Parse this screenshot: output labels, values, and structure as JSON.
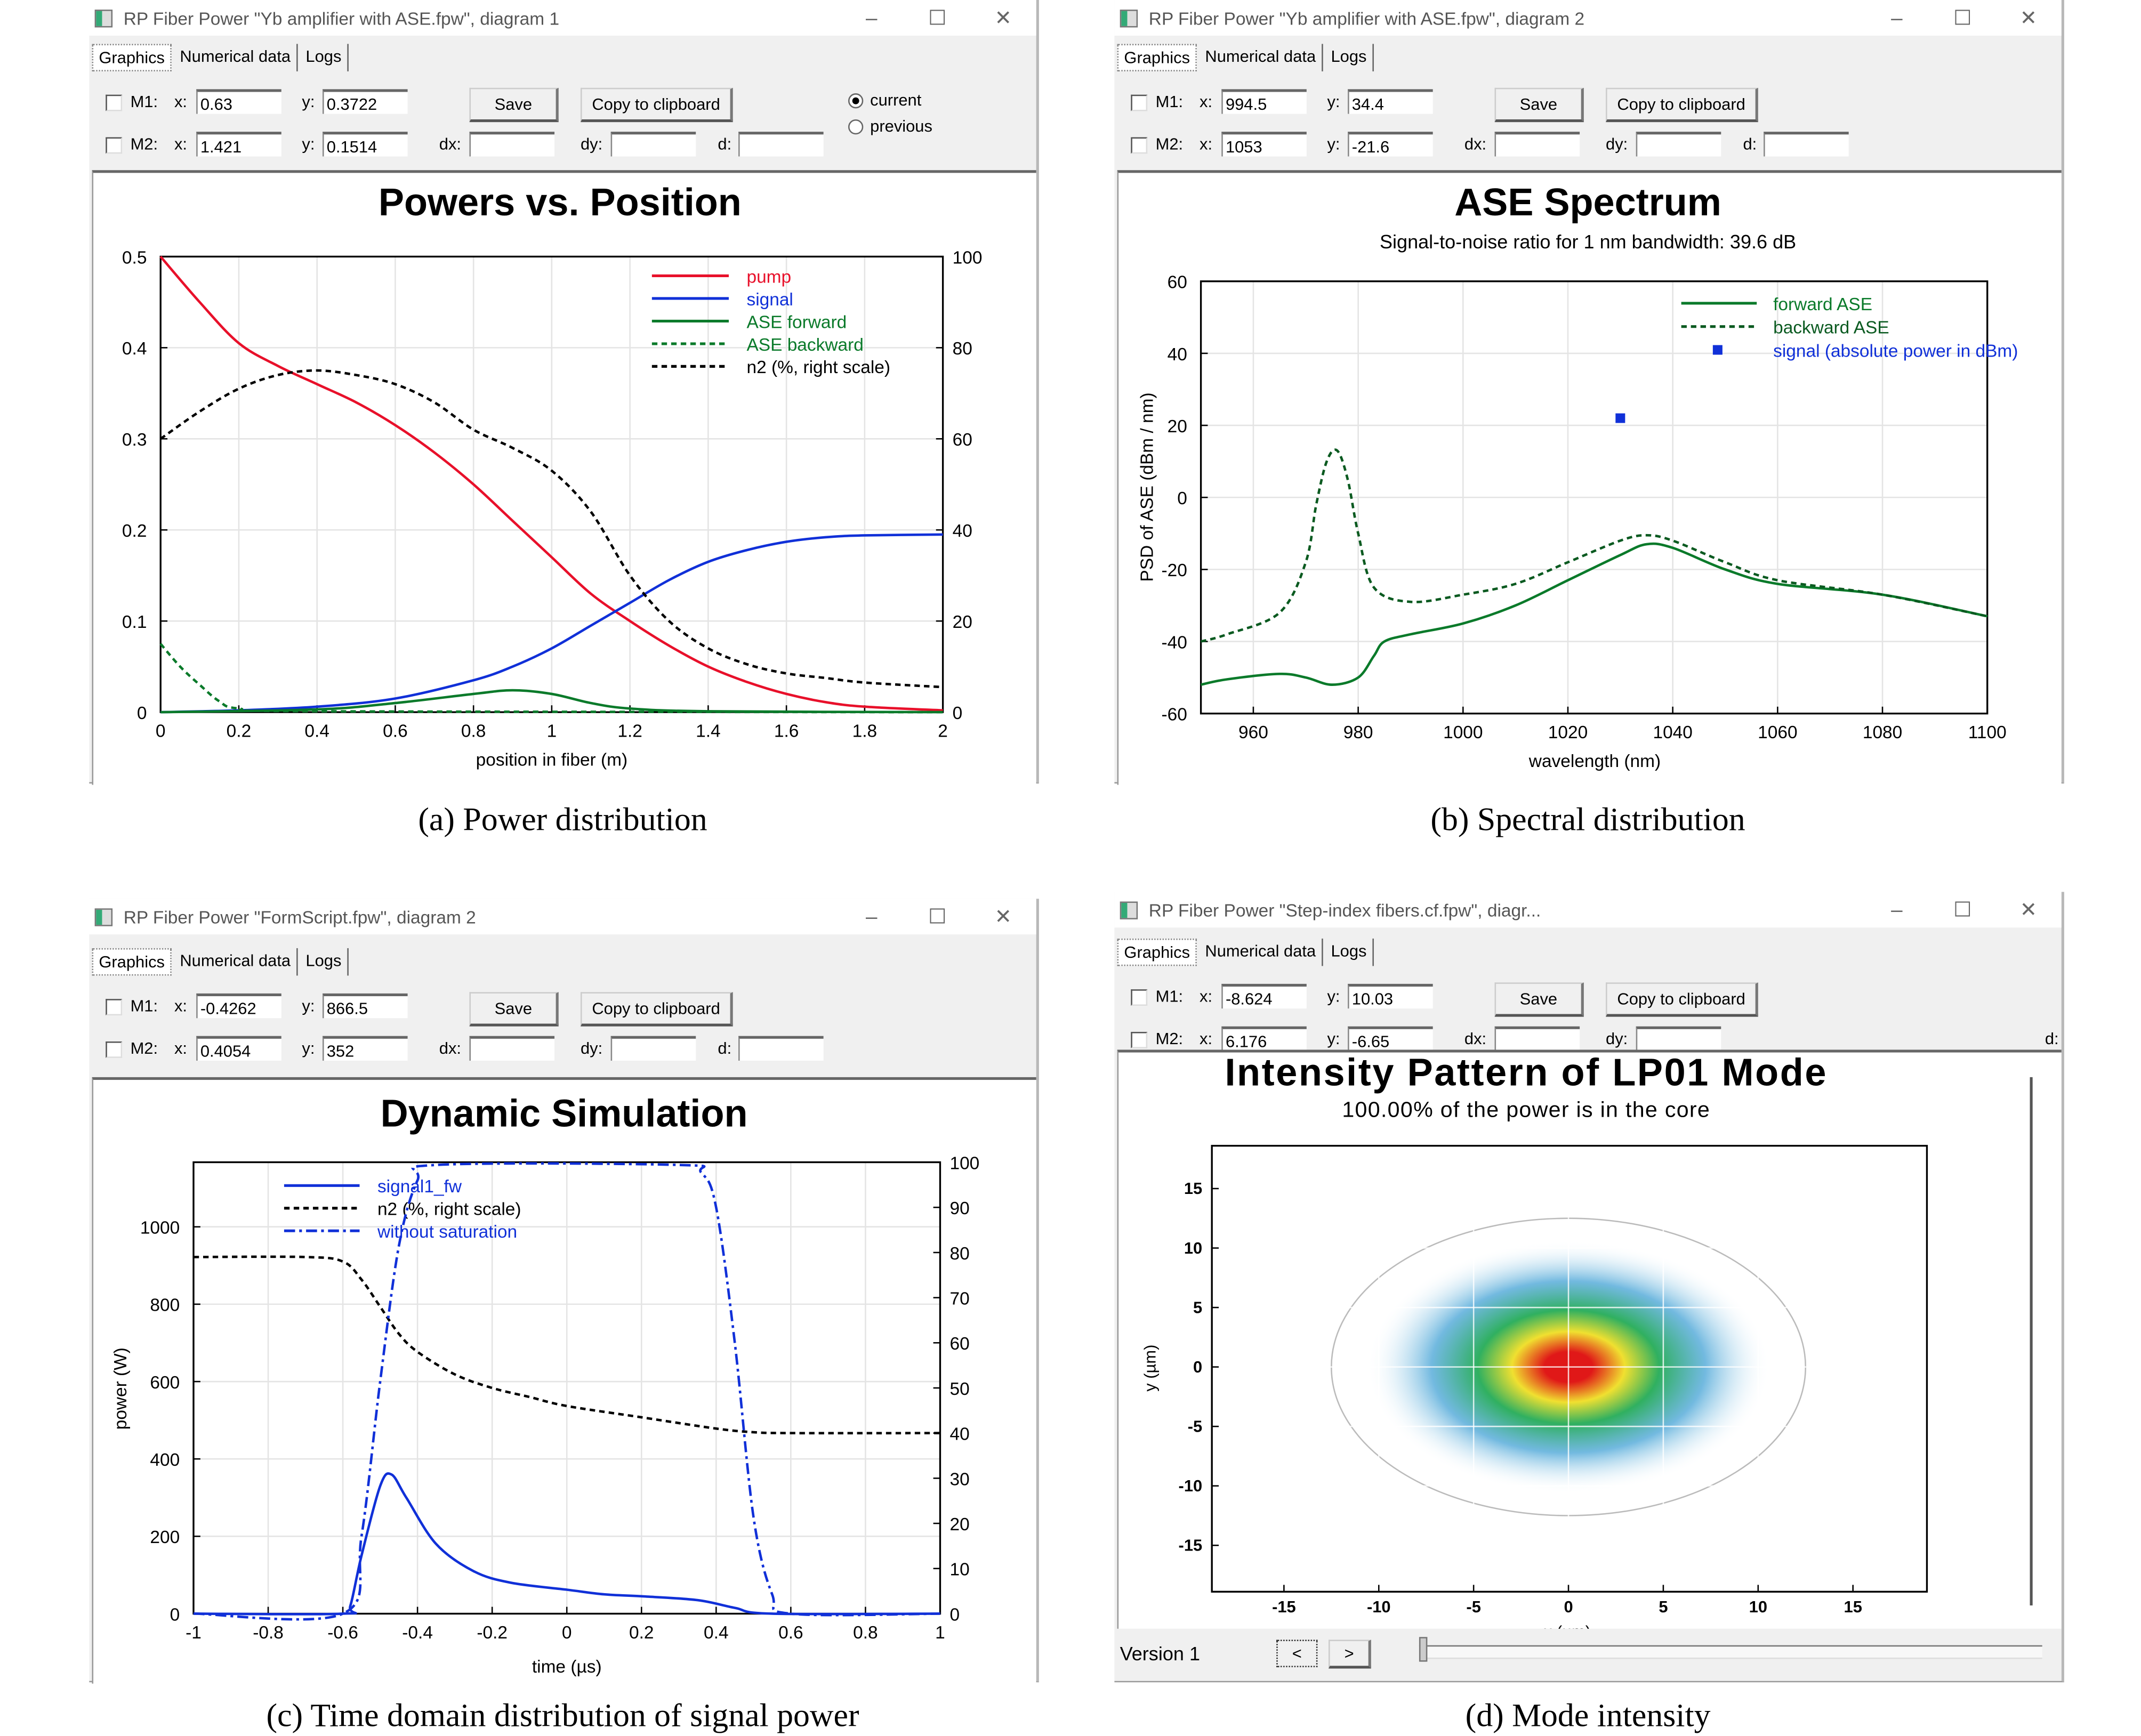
{
  "captions": [
    "(a) Power distribution",
    "(b) Spectral distribution",
    "(c) Time domain distribution of signal power",
    "(d) Mode intensity"
  ],
  "windows": [
    {
      "title": "RP Fiber Power \"Yb amplifier with ASE.fpw\", diagram 1",
      "tabs": [
        "Graphics",
        "Numerical data",
        "Logs"
      ],
      "m1_label": "M1:",
      "m2_label": "M2:",
      "x_label": "x:",
      "y_label": "y:",
      "dx_label": "dx:",
      "dy_label": "dy:",
      "d_label": "d:",
      "m1": {
        "x": "0.63",
        "y": "0.3722"
      },
      "m2": {
        "x": "1.421",
        "y": "0.1514"
      },
      "dx": "",
      "dy": "",
      "d": "",
      "save": "Save",
      "copy": "Copy to clipboard",
      "radio_current": "current",
      "radio_previous": "previous"
    },
    {
      "title": "RP Fiber Power \"Yb amplifier with ASE.fpw\", diagram 2",
      "tabs": [
        "Graphics",
        "Numerical data",
        "Logs"
      ],
      "m1_label": "M1:",
      "m2_label": "M2:",
      "x_label": "x:",
      "y_label": "y:",
      "dx_label": "dx:",
      "dy_label": "dy:",
      "d_label": "d:",
      "m1": {
        "x": "994.5",
        "y": "34.4"
      },
      "m2": {
        "x": "1053",
        "y": "-21.6"
      },
      "dx": "",
      "dy": "",
      "d": "",
      "save": "Save",
      "copy": "Copy to clipboard"
    },
    {
      "title": "RP Fiber Power \"FormScript.fpw\", diagram 2",
      "tabs": [
        "Graphics",
        "Numerical data",
        "Logs"
      ],
      "m1_label": "M1:",
      "m2_label": "M2:",
      "x_label": "x:",
      "y_label": "y:",
      "dx_label": "dx:",
      "dy_label": "dy:",
      "d_label": "d:",
      "m1": {
        "x": "-0.4262",
        "y": "866.5"
      },
      "m2": {
        "x": "0.4054",
        "y": "352"
      },
      "dx": "",
      "dy": "",
      "d": "",
      "save": "Save",
      "copy": "Copy to clipboard"
    },
    {
      "title": "RP Fiber Power \"Step-index fibers.cf.fpw\", diagr...",
      "tabs": [
        "Graphics",
        "Numerical data",
        "Logs"
      ],
      "m1_label": "M1:",
      "m2_label": "M2:",
      "x_label": "x:",
      "y_label": "y:",
      "dx_label": "dx:",
      "dy_label": "dy:",
      "d_label": "d:",
      "m1": {
        "x": "-8.624",
        "y": "10.03"
      },
      "m2": {
        "x": "6.176",
        "y": "-6.65"
      },
      "dx": "",
      "dy": "",
      "save": "Save",
      "copy": "Copy to clipboard",
      "version": "Version 1",
      "prev": "<",
      "next": ">"
    }
  ],
  "window_controls": {
    "minimize": "–",
    "maximize": "☐",
    "close": "✕"
  },
  "chart_data": [
    {
      "type": "line",
      "title": "Powers vs. Position",
      "xlabel": "position in fiber (m)",
      "ylabel": "",
      "xlim": [
        0,
        2
      ],
      "ylim": [
        0,
        0.5
      ],
      "y2lim": [
        0,
        100
      ],
      "grid": true,
      "legend": "top-right",
      "xticks": [
        "0",
        "0.2",
        "0.4",
        "0.6",
        "0.8",
        "1",
        "1.2",
        "1.4",
        "1.6",
        "1.8",
        "2"
      ],
      "yticks": [
        "0",
        "0.1",
        "0.2",
        "0.3",
        "0.4",
        "0.5"
      ],
      "y2ticks": [
        "0",
        "20",
        "40",
        "60",
        "80",
        "100"
      ],
      "series": [
        {
          "name": "pump",
          "color": "#e8102a",
          "dash": false,
          "axis": "left",
          "x": [
            0,
            0.1,
            0.2,
            0.3,
            0.4,
            0.5,
            0.6,
            0.7,
            0.8,
            0.9,
            1.0,
            1.1,
            1.2,
            1.3,
            1.4,
            1.5,
            1.6,
            1.7,
            1.8,
            2.0
          ],
          "y": [
            0.5,
            0.45,
            0.405,
            0.38,
            0.36,
            0.34,
            0.315,
            0.285,
            0.25,
            0.21,
            0.17,
            0.13,
            0.1,
            0.073,
            0.05,
            0.033,
            0.02,
            0.011,
            0.006,
            0.002
          ]
        },
        {
          "name": "signal",
          "color": "#1030d8",
          "dash": false,
          "axis": "left",
          "x": [
            0,
            0.2,
            0.4,
            0.6,
            0.8,
            0.9,
            1.0,
            1.1,
            1.2,
            1.3,
            1.4,
            1.5,
            1.6,
            1.7,
            1.8,
            2.0
          ],
          "y": [
            0,
            0.002,
            0.006,
            0.015,
            0.035,
            0.05,
            0.07,
            0.095,
            0.12,
            0.145,
            0.165,
            0.178,
            0.187,
            0.192,
            0.194,
            0.195
          ]
        },
        {
          "name": "ASE forward",
          "color": "#0a7a2a",
          "dash": false,
          "axis": "left",
          "x": [
            0,
            0.4,
            0.6,
            0.8,
            0.9,
            1.0,
            1.1,
            1.2,
            1.4,
            2.0
          ],
          "y": [
            0,
            0.003,
            0.01,
            0.02,
            0.024,
            0.02,
            0.01,
            0.004,
            0.001,
            0
          ]
        },
        {
          "name": "ASE backward",
          "color": "#0a7a2a",
          "dash": true,
          "axis": "left",
          "x": [
            0,
            0.05,
            0.1,
            0.15,
            0.2,
            0.4,
            2.0
          ],
          "y": [
            0.075,
            0.05,
            0.03,
            0.012,
            0.004,
            0.001,
            0
          ]
        },
        {
          "name": "n2 (%, right scale)",
          "color": "#000000",
          "dash": true,
          "axis": "right",
          "x": [
            0,
            0.1,
            0.2,
            0.3,
            0.4,
            0.5,
            0.6,
            0.7,
            0.8,
            0.9,
            1.0,
            1.1,
            1.2,
            1.3,
            1.4,
            1.5,
            1.6,
            1.7,
            1.8,
            2.0
          ],
          "y": [
            60,
            66,
            71,
            74,
            75,
            74,
            72,
            68,
            62,
            58,
            53,
            44,
            30,
            20,
            14,
            10.5,
            8.5,
            7.5,
            6.5,
            5.5
          ]
        }
      ],
      "legend_colors": [
        "#e8102a",
        "#1030d8",
        "#0a7a2a",
        "#0a7a2a",
        "#000000"
      ]
    },
    {
      "type": "line",
      "title": "ASE Spectrum",
      "subtitle": "Signal-to-noise ratio for 1 nm bandwidth: 39.6 dB",
      "xlabel": "wavelength (nm)",
      "ylabel": "PSD of ASE (dBm / nm)",
      "xlim": [
        950,
        1100
      ],
      "ylim": [
        -60,
        60
      ],
      "grid": true,
      "legend": "top-right",
      "xticks": [
        "960",
        "980",
        "1000",
        "1020",
        "1040",
        "1060",
        "1080",
        "1100"
      ],
      "yticks": [
        "-60",
        "-40",
        "-20",
        "0",
        "20",
        "40",
        "60"
      ],
      "series": [
        {
          "name": "forward ASE",
          "color": "#0a7a2a",
          "dash": false,
          "x": [
            950,
            955,
            965,
            970,
            975,
            980,
            983,
            985,
            990,
            1000,
            1010,
            1020,
            1030,
            1035,
            1040,
            1050,
            1060,
            1080,
            1100
          ],
          "y": [
            -52,
            -50.5,
            -49,
            -50,
            -52,
            -50,
            -44,
            -40,
            -38,
            -35,
            -30,
            -23,
            -16,
            -13,
            -14,
            -20,
            -24,
            -27,
            -33
          ]
        },
        {
          "name": "backward ASE",
          "color": "#0a5a20",
          "dash": true,
          "x": [
            950,
            955,
            965,
            970,
            972,
            974,
            976,
            978,
            980,
            983,
            990,
            1000,
            1010,
            1020,
            1030,
            1035,
            1040,
            1050,
            1060,
            1080,
            1100
          ],
          "y": [
            -40,
            -38,
            -32,
            -18,
            -2,
            10,
            13,
            5,
            -10,
            -25,
            -29,
            -27,
            -24,
            -18,
            -12,
            -10.5,
            -12,
            -18,
            -23,
            -27,
            -33
          ]
        },
        {
          "name": "signal (absolute power in dBm)",
          "color": "#1030d8",
          "marker": "square",
          "x": [
            1030
          ],
          "y": [
            22
          ]
        }
      ]
    },
    {
      "type": "line",
      "title": "Dynamic Simulation",
      "xlabel": "time (µs)",
      "ylabel": "power (W)",
      "xlim": [
        -1,
        1
      ],
      "ylim": [
        0,
        1167
      ],
      "y2lim": [
        0,
        100
      ],
      "grid": true,
      "legend": "top-left",
      "xticks": [
        "-1",
        "-0.8",
        "-0.6",
        "-0.4",
        "-0.2",
        "0",
        "0.2",
        "0.4",
        "0.6",
        "0.8",
        "1"
      ],
      "yticks": [
        "0",
        "200",
        "400",
        "600",
        "800",
        "1000"
      ],
      "y2ticks": [
        "0",
        "10",
        "20",
        "30",
        "40",
        "50",
        "60",
        "70",
        "80",
        "90",
        "100"
      ],
      "series": [
        {
          "name": "signal1_fw",
          "color": "#1030d8",
          "dash": false,
          "axis": "left",
          "x": [
            -1,
            -0.6,
            -0.58,
            -0.55,
            -0.5,
            -0.47,
            -0.43,
            -0.35,
            -0.25,
            -0.15,
            0,
            0.1,
            0.2,
            0.35,
            0.45,
            0.55,
            1
          ],
          "y": [
            0,
            0,
            20,
            150,
            330,
            360,
            300,
            180,
            110,
            80,
            62,
            50,
            45,
            35,
            15,
            0,
            0
          ]
        },
        {
          "name": "n2 (%, right scale)",
          "color": "#000000",
          "dash": true,
          "axis": "right",
          "x": [
            -1,
            -0.7,
            -0.6,
            -0.55,
            -0.5,
            -0.45,
            -0.4,
            -0.3,
            -0.2,
            -0.1,
            0,
            0.2,
            0.4,
            0.5,
            0.6,
            1
          ],
          "y": [
            79,
            79,
            78,
            74,
            68,
            62,
            58,
            53,
            50,
            48,
            46,
            43.5,
            41,
            40.2,
            40,
            40
          ]
        },
        {
          "name": "without saturation",
          "color": "#1030d8",
          "dash": "dashdot",
          "axis": "left",
          "x": [
            -1,
            -0.6,
            -0.55,
            -0.5,
            -0.45,
            -0.4,
            -0.35,
            0.3,
            0.36,
            0.4,
            0.45,
            0.5,
            0.55,
            0.6,
            1
          ],
          "y": [
            0,
            0,
            200,
            600,
            950,
            1120,
            1160,
            1160,
            1140,
            1050,
            700,
            250,
            50,
            0,
            0
          ]
        }
      ]
    },
    {
      "type": "heatmap",
      "title": "Intensity Pattern of LP01 Mode",
      "subtitle": "100.00% of the power is in the core",
      "xlabel": "x (µm)",
      "ylabel": "y (µm)",
      "xlim": [
        -18.8,
        18.9
      ],
      "ylim": [
        -18.9,
        18.6
      ],
      "xticks": [
        "-15",
        "-10",
        "-5",
        "0",
        "5",
        "10",
        "15"
      ],
      "yticks": [
        "-15",
        "-10",
        "-5",
        "0",
        "5",
        "10",
        "15"
      ],
      "core_radius_um": 12.5,
      "mode_peak": [
        0,
        0
      ],
      "colormap": [
        "#ffffff",
        "#4fa8d8",
        "#30b060",
        "#f0e030",
        "#e01818"
      ]
    }
  ]
}
